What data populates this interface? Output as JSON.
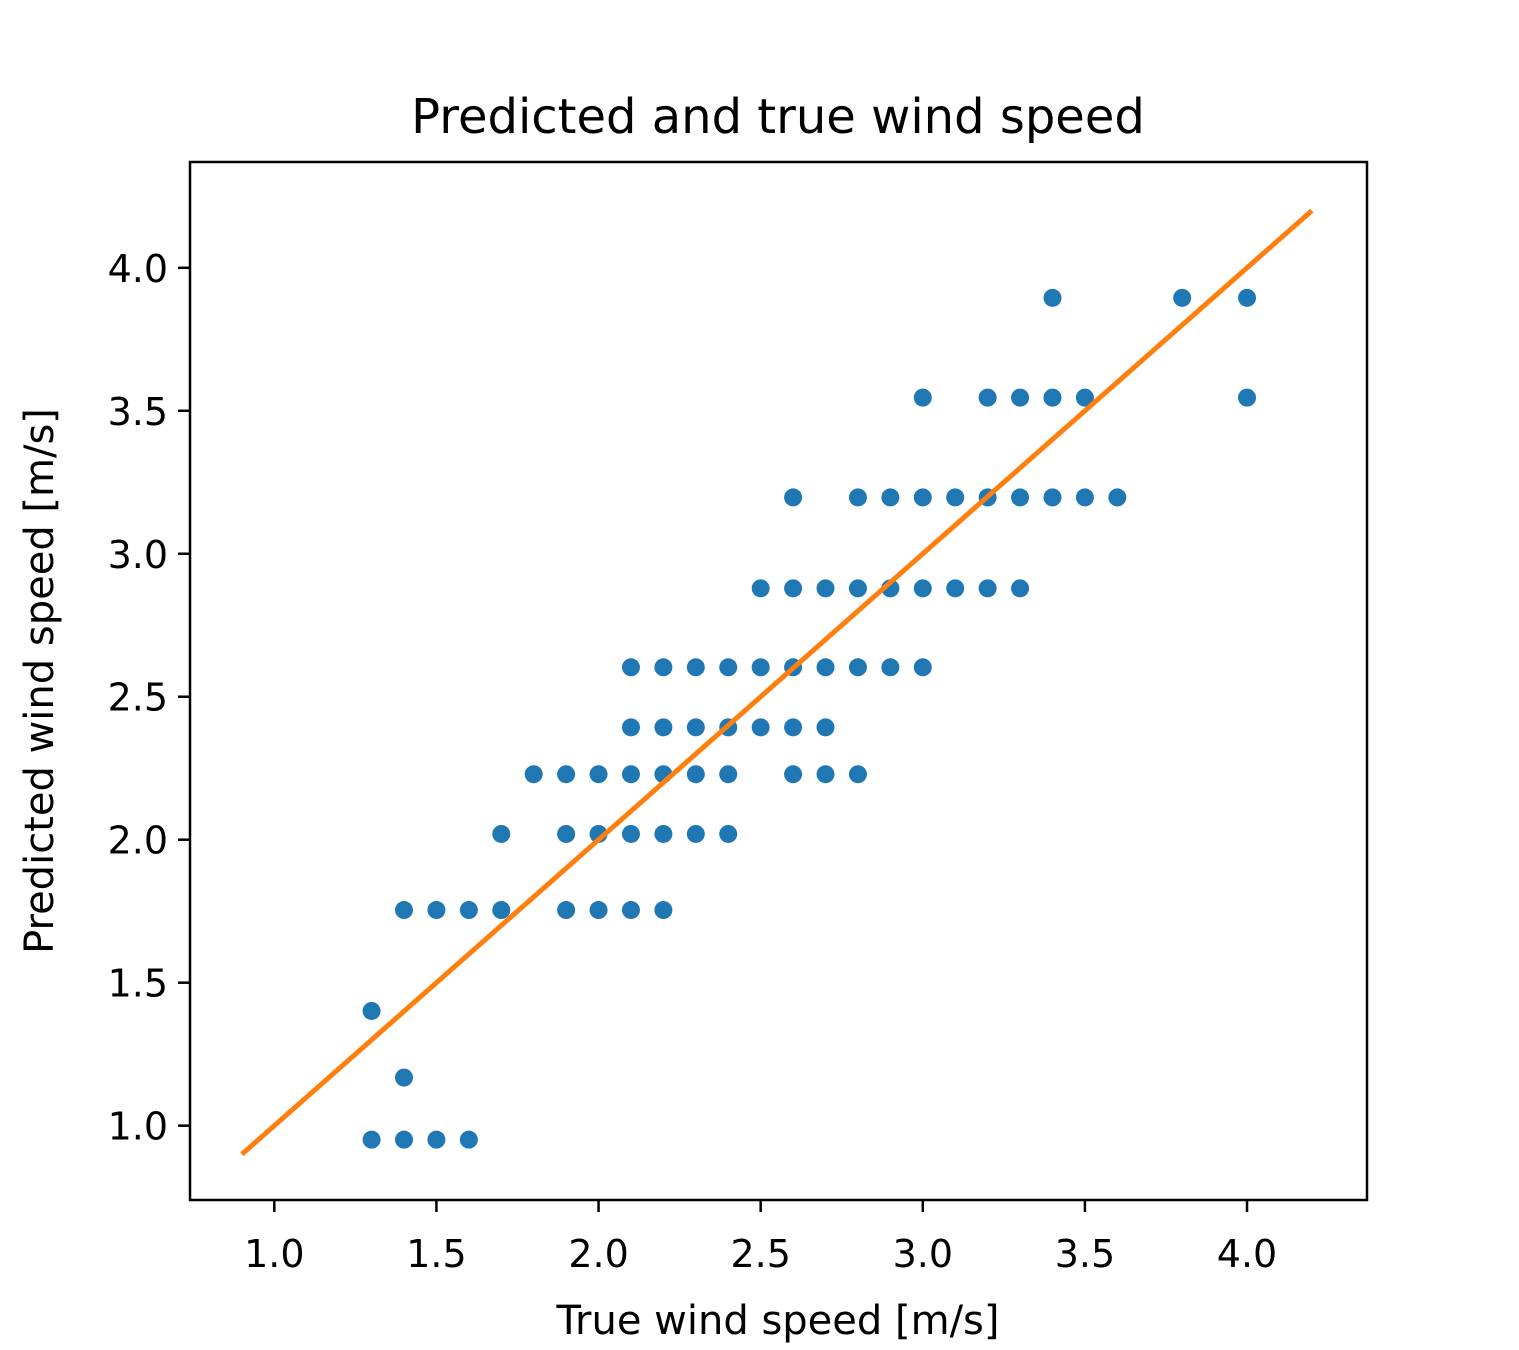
{
  "chart_data": {
    "type": "scatter",
    "title": "Predicted and true wind speed",
    "xlabel": "True wind speed [m/s]",
    "ylabel": "Predicted wind speed [m/s]",
    "xlim": [
      0.74,
      4.37
    ],
    "ylim": [
      0.74,
      4.37
    ],
    "xticks": [
      "1.0",
      "1.5",
      "2.0",
      "2.5",
      "3.0",
      "3.5",
      "4.0"
    ],
    "yticks": [
      "1.0",
      "1.5",
      "2.0",
      "2.5",
      "3.0",
      "3.5",
      "4.0"
    ],
    "grid": false,
    "colors": {
      "points": "#1f77b4",
      "line": "#ff7f0e"
    },
    "line": {
      "x": [
        0.9,
        4.2
      ],
      "y": [
        0.9,
        4.2
      ]
    },
    "rows": [
      {
        "y": 3.895,
        "x": [
          3.4,
          3.8,
          4.0
        ]
      },
      {
        "y": 3.546,
        "x": [
          3.0,
          3.2,
          3.3,
          3.4,
          3.5,
          4.0
        ]
      },
      {
        "y": 3.197,
        "x": [
          2.6,
          2.8,
          2.9,
          3.0,
          3.1,
          3.2,
          3.3,
          3.4,
          3.5,
          3.6
        ]
      },
      {
        "y": 2.879,
        "x": [
          2.5,
          2.6,
          2.7,
          2.8,
          2.9,
          3.0,
          3.1,
          3.2,
          3.3
        ]
      },
      {
        "y": 2.603,
        "x": [
          2.1,
          2.2,
          2.3,
          2.4,
          2.5,
          2.6,
          2.7,
          2.8,
          2.9,
          3.0
        ]
      },
      {
        "y": 2.393,
        "x": [
          2.1,
          2.2,
          2.3,
          2.4,
          2.5,
          2.6,
          2.7
        ]
      },
      {
        "y": 2.229,
        "x": [
          1.8,
          1.9,
          2.0,
          2.1,
          2.2,
          2.3,
          2.4,
          2.6,
          2.7,
          2.8
        ]
      },
      {
        "y": 2.02,
        "x": [
          1.7,
          1.9,
          2.0,
          2.1,
          2.2,
          2.3,
          2.4
        ]
      },
      {
        "y": 1.754,
        "x": [
          1.4,
          1.5,
          1.6,
          1.7,
          1.9,
          2.0,
          2.1,
          2.2
        ]
      },
      {
        "y": 1.401,
        "x": [
          1.3
        ]
      },
      {
        "y": 1.168,
        "x": [
          1.4
        ]
      },
      {
        "y": 0.951,
        "x": [
          1.3,
          1.4,
          1.5,
          1.6
        ]
      }
    ]
  }
}
